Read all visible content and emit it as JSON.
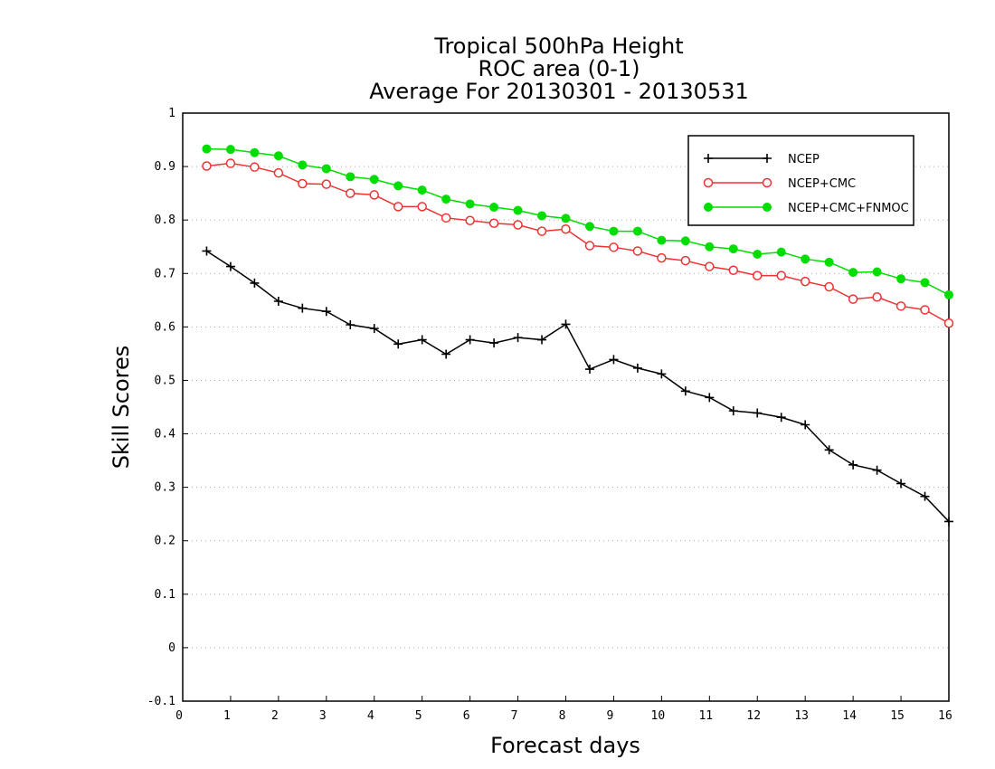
{
  "chart_data": {
    "type": "line",
    "title": [
      "Tropical 500hPa Height",
      "ROC area (0-1)",
      "Average For 20130301 - 20130531"
    ],
    "xlabel": "Forecast days",
    "ylabel": "Skill Scores",
    "xlim": [
      0,
      16
    ],
    "ylim": [
      -0.1,
      1
    ],
    "xticks": [
      "0",
      "1",
      "2",
      "3",
      "4",
      "5",
      "6",
      "7",
      "8",
      "9",
      "10",
      "11",
      "12",
      "13",
      "14",
      "15",
      "16"
    ],
    "yticks": [
      "-0.1",
      "0",
      "0.1",
      "0.2",
      "0.3",
      "0.4",
      "0.5",
      "0.6",
      "0.7",
      "0.8",
      "0.9",
      "1"
    ],
    "grid": "dotted horizontal",
    "legend_position": "top-right",
    "x": [
      0.5,
      1.0,
      1.5,
      2.0,
      2.5,
      3.0,
      3.5,
      4.0,
      4.5,
      5.0,
      5.5,
      6.0,
      6.5,
      7.0,
      7.5,
      8.0,
      8.5,
      9.0,
      9.5,
      10.0,
      10.5,
      11.0,
      11.5,
      12.0,
      12.5,
      13.0,
      13.5,
      14.0,
      14.5,
      15.0,
      15.5,
      16.0
    ],
    "series": [
      {
        "name": "NCEP",
        "color": "#000000",
        "marker": "plus",
        "values": [
          0.742,
          0.713,
          0.682,
          0.648,
          0.635,
          0.629,
          0.604,
          0.597,
          0.568,
          0.576,
          0.549,
          0.576,
          0.57,
          0.58,
          0.576,
          0.605,
          0.521,
          0.539,
          0.523,
          0.512,
          0.48,
          0.468,
          0.443,
          0.439,
          0.431,
          0.417,
          0.37,
          0.342,
          0.332,
          0.307,
          0.283,
          0.236
        ]
      },
      {
        "name": "NCEP+CMC",
        "color": "#ee3333",
        "marker": "open-circle",
        "values": [
          0.901,
          0.906,
          0.899,
          0.888,
          0.868,
          0.867,
          0.85,
          0.847,
          0.825,
          0.825,
          0.804,
          0.799,
          0.794,
          0.791,
          0.779,
          0.783,
          0.752,
          0.749,
          0.742,
          0.729,
          0.724,
          0.713,
          0.706,
          0.696,
          0.696,
          0.685,
          0.675,
          0.652,
          0.656,
          0.639,
          0.632,
          0.607
        ]
      },
      {
        "name": "NCEP+CMC+FNMOC",
        "color": "#00dd00",
        "marker": "filled-circle",
        "values": [
          0.933,
          0.932,
          0.926,
          0.92,
          0.903,
          0.896,
          0.881,
          0.876,
          0.864,
          0.856,
          0.839,
          0.83,
          0.824,
          0.818,
          0.808,
          0.803,
          0.788,
          0.779,
          0.779,
          0.762,
          0.761,
          0.75,
          0.746,
          0.736,
          0.74,
          0.727,
          0.721,
          0.702,
          0.703,
          0.69,
          0.683,
          0.66
        ]
      }
    ]
  }
}
